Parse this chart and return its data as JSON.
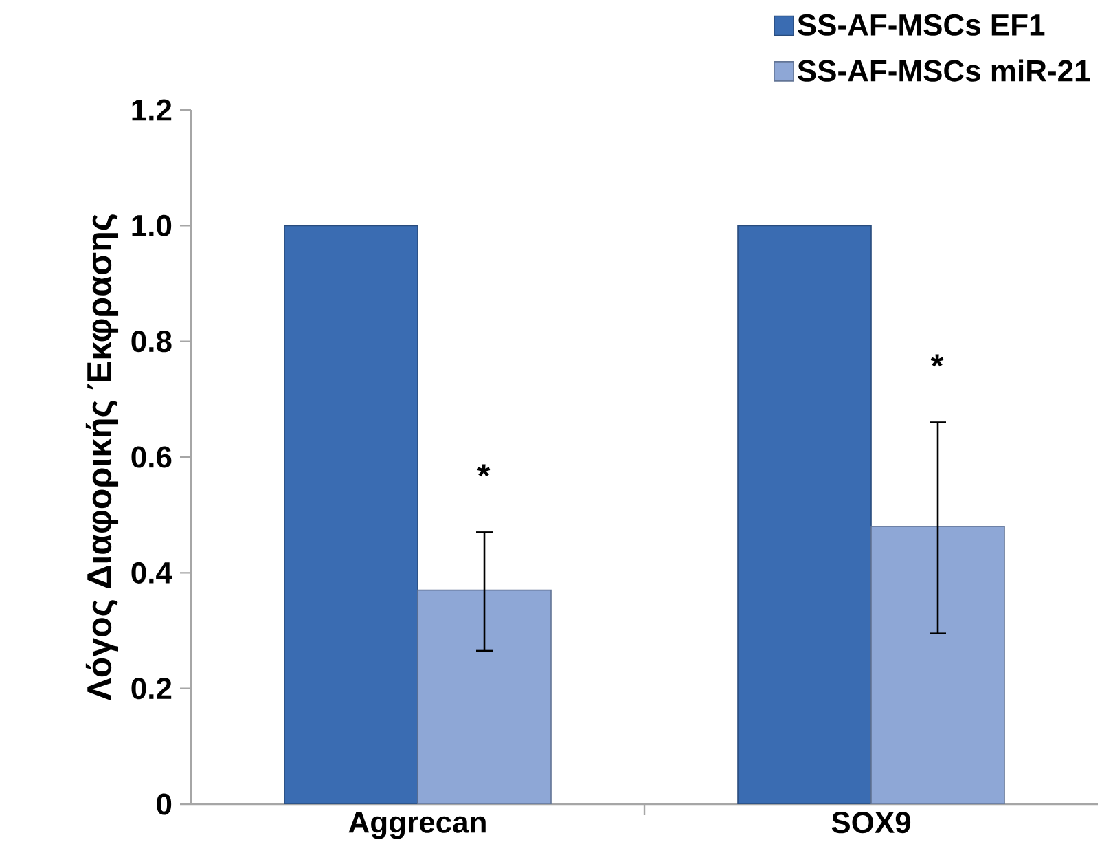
{
  "chart_data": {
    "type": "bar",
    "ylabel": "Λόγος Διαφορικής Έκφρασης",
    "categories": [
      "Aggrecan",
      "SOX9"
    ],
    "series": [
      {
        "name": "SS-AF-MSCs EF1",
        "color": "#3a6cb2",
        "values": [
          1.0,
          1.0
        ]
      },
      {
        "name": "SS-AF-MSCs miR-21",
        "color": "#8ea7d6",
        "values": [
          0.37,
          0.48
        ],
        "errors": [
          [
            0.265,
            0.47
          ],
          [
            0.295,
            0.66
          ]
        ]
      }
    ],
    "ylim": [
      0,
      1.2
    ],
    "yticks": [
      0,
      0.2,
      0.4,
      0.6,
      0.8,
      {
        "value": 1.0,
        "label": "1.0"
      },
      1.2
    ],
    "annotations": [
      {
        "text": "*",
        "x": "Aggrecan",
        "y": 0.54
      },
      {
        "text": "*",
        "x": "SOX9",
        "y": 0.73
      }
    ],
    "legend": "top right",
    "grid": false
  }
}
